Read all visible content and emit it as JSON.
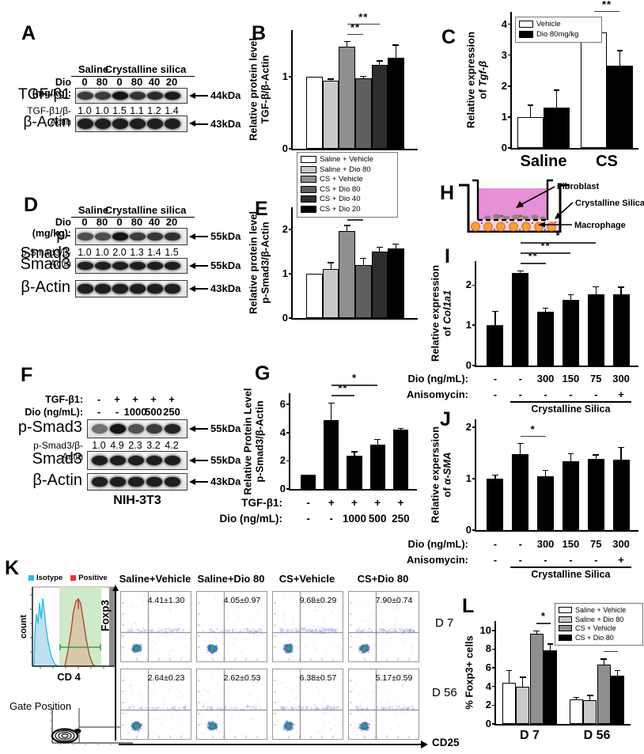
{
  "panel_letters": {
    "A": "A",
    "B": "B",
    "C": "C",
    "D": "D",
    "E": "E",
    "F": "F",
    "G": "G",
    "H": "H",
    "I": "I",
    "J": "J",
    "K": "K",
    "L": "L"
  },
  "blots": {
    "A": {
      "header_groups": [
        {
          "label": "Saline",
          "from": 0,
          "to": 1
        },
        {
          "label": "Crystalline silica",
          "from": 2,
          "to": 5
        }
      ],
      "treat_rows": [
        {
          "label": "Dio (mg/kg):",
          "values": [
            "0",
            "80",
            "0",
            "80",
            "40",
            "20"
          ]
        }
      ],
      "rows": [
        {
          "type": "band",
          "label": "TGF-β1",
          "kda": "44kDa"
        },
        {
          "type": "ratio",
          "label": "TGF-β1/β-Actin",
          "values": [
            "1.0",
            "1.0",
            "1.5",
            "1.1",
            "1.2",
            "1.4"
          ]
        },
        {
          "type": "band",
          "label": "β-Actin",
          "kda": "43kDa"
        }
      ]
    },
    "D": {
      "header_groups": [
        {
          "label": "Saline",
          "from": 0,
          "to": 1
        },
        {
          "label": "Crystalline silica",
          "from": 2,
          "to": 5
        }
      ],
      "treat_rows": [
        {
          "label": "Dio (mg/kg):",
          "values": [
            "0",
            "80",
            "0",
            "80",
            "40",
            "20"
          ]
        }
      ],
      "rows": [
        {
          "type": "band",
          "label": "p-Smad3",
          "kda": "55kDa"
        },
        {
          "type": "ratio",
          "label": "p-Smad3/β-Actin",
          "values": [
            "1.0",
            "1.0",
            "2.0",
            "1.3",
            "1.4",
            "1.5"
          ]
        },
        {
          "type": "band",
          "label": "Smad3",
          "kda": "55kDa"
        },
        {
          "type": "band",
          "label": "β-Actin",
          "kda": "43kDa"
        }
      ]
    },
    "F": {
      "treat_rows": [
        {
          "label": "TGF-β1:",
          "values": [
            "-",
            "+",
            "+",
            "+",
            "+"
          ]
        },
        {
          "label": "Dio (ng/mL):",
          "values": [
            "-",
            "-",
            "1000",
            "500",
            "250"
          ]
        }
      ],
      "rows": [
        {
          "type": "band",
          "label": "p-Smad3",
          "kda": "55kDa"
        },
        {
          "type": "ratio",
          "label": "p-Smad3/β-Actin",
          "values": [
            "1.0",
            "4.9",
            "2.3",
            "3.2",
            "4.2"
          ]
        },
        {
          "type": "band",
          "label": "Smad3",
          "kda": "55kDa"
        },
        {
          "type": "band",
          "label": "β-Actin",
          "kda": "43kDa"
        }
      ],
      "caption": "NIH-3T3"
    }
  },
  "chart_data": [
    {
      "id": "B",
      "type": "bar",
      "ylabel": {
        "l1": "Relative protein level",
        "l2": "TGF-β/β-Actin",
        "em": ""
      },
      "categories": [
        "Saline + Vehicle",
        "Saline + Dio 80",
        "CS + Vehicle",
        "CS + Dio 80",
        "CS + Dio 40",
        "CS + Dio 20"
      ],
      "values": [
        1.0,
        0.95,
        1.42,
        0.98,
        1.17,
        1.27
      ],
      "errors": [
        0,
        0.02,
        0.07,
        0.03,
        0.05,
        0.17
      ],
      "colors": [
        "#ffffff",
        "#c9c9c9",
        "#8f8f8f",
        "#5f5f5f",
        "#2e2e2e",
        "#000000"
      ],
      "ylim": [
        0,
        1.65
      ],
      "yticks": [
        0,
        1
      ],
      "sig": [
        {
          "from": 2,
          "to": 3,
          "label": "**",
          "row": 0
        },
        {
          "from": 2,
          "to": 4,
          "label": "**",
          "row": 1
        }
      ],
      "legend": [
        {
          "label": "Saline + Vehicle",
          "color": "#ffffff"
        },
        {
          "label": "Saline + Dio 80",
          "color": "#c9c9c9"
        },
        {
          "label": "CS + Vehicle",
          "color": "#8f8f8f"
        },
        {
          "label": "CS + Dio 80",
          "color": "#5f5f5f"
        },
        {
          "label": "CS + Dio 40",
          "color": "#2e2e2e"
        },
        {
          "label": "CS + Dio 20",
          "color": "#000000"
        }
      ]
    },
    {
      "id": "C",
      "type": "bar",
      "grouped": true,
      "ylabel": {
        "l1": "Relative expression",
        "l2": "of ",
        "em": "Tgf-β"
      },
      "groups": [
        "Saline",
        "CS"
      ],
      "series": [
        {
          "name": "Vehicle",
          "color": "#ffffff",
          "values": [
            1.0,
            3.73
          ],
          "errors": [
            0.38,
            0.45
          ]
        },
        {
          "name": "Dio 80mg/kg",
          "color": "#000000",
          "values": [
            1.3,
            2.65
          ],
          "errors": [
            0.57,
            0.5
          ]
        }
      ],
      "ylim": [
        0,
        4.4
      ],
      "yticks": [
        0,
        1,
        2,
        3,
        4
      ],
      "sig": [
        {
          "from": 2,
          "to": 3,
          "label": "**",
          "row": 0
        }
      ],
      "legend": [
        {
          "label": "Vehicle",
          "color": "#ffffff"
        },
        {
          "label": "Dio 80mg/kg",
          "color": "#000000"
        }
      ]
    },
    {
      "id": "E",
      "type": "bar",
      "ylabel": {
        "l1": "Relative protein level",
        "l2": "p-Smad3/β-Actin",
        "em": ""
      },
      "categories": [
        "Saline + Vehicle",
        "Saline + Dio 80",
        "CS + Vehicle",
        "CS + Dio 80",
        "CS + Dio 40",
        "CS + Dio 20"
      ],
      "values": [
        1.0,
        1.1,
        1.97,
        1.2,
        1.5,
        1.57
      ],
      "errors": [
        0,
        0.15,
        0.12,
        0.15,
        0.1,
        0.1
      ],
      "colors": [
        "#ffffff",
        "#c9c9c9",
        "#8f8f8f",
        "#5f5f5f",
        "#2e2e2e",
        "#000000"
      ],
      "ylim": [
        0,
        2.5
      ],
      "yticks": [
        0,
        1,
        2
      ],
      "sig": [
        {
          "from": 2,
          "to": 3,
          "label": "**",
          "row": 0
        },
        {
          "from": 2,
          "to": 4,
          "label": "**",
          "row": 1
        },
        {
          "from": 2,
          "to": 5,
          "label": "**",
          "row": 2
        }
      ]
    },
    {
      "id": "G",
      "type": "bar",
      "ylabel": {
        "l1": "Relative Protein Level",
        "l2": "p-Smad3/β-Actin",
        "em": ""
      },
      "values": [
        1.0,
        4.9,
        2.35,
        3.15,
        4.2
      ],
      "errors": [
        0,
        1.2,
        0.3,
        0.35,
        0.12
      ],
      "colors": [
        "#000000",
        "#000000",
        "#000000",
        "#000000",
        "#000000"
      ],
      "ylim": [
        0,
        6.8
      ],
      "yticks": [
        0,
        2,
        4,
        6
      ],
      "sig": [
        {
          "from": 1,
          "to": 2,
          "label": "**",
          "row": 0
        },
        {
          "from": 1,
          "to": 3,
          "label": "*",
          "row": 1
        }
      ],
      "xrows": [
        {
          "label": "TGF-β1:",
          "values": [
            "-",
            "+",
            "+",
            "+",
            "+"
          ]
        },
        {
          "label": "Dio (ng/mL):",
          "values": [
            "-",
            "-",
            "1000",
            "500",
            "250"
          ]
        }
      ]
    },
    {
      "id": "I",
      "type": "bar",
      "ylabel": {
        "l1": "Relative expression",
        "l2": "of ",
        "em": "Col1a1"
      },
      "values": [
        1.0,
        2.3,
        1.33,
        1.63,
        1.78,
        1.77
      ],
      "errors": [
        0.35,
        0.06,
        0.1,
        0.13,
        0.18,
        0.18
      ],
      "colors": [
        "#000000",
        "#000000",
        "#000000",
        "#000000",
        "#000000",
        "#000000"
      ],
      "ylim": [
        0,
        2.6
      ],
      "yticks": [
        0,
        1,
        2
      ],
      "sig": [
        {
          "from": 1,
          "to": 2,
          "label": "**",
          "row": 0
        },
        {
          "from": 1,
          "to": 3,
          "label": "**",
          "row": 1
        },
        {
          "from": 1,
          "to": 4,
          "label": "*",
          "row": 2
        }
      ],
      "xrows": [
        {
          "label": "Dio (ng/mL):",
          "values": [
            "-",
            "-",
            "300",
            "150",
            "75",
            "300"
          ]
        },
        {
          "label": "Anisomycin:",
          "values": [
            "-",
            "-",
            "-",
            "-",
            "-",
            "+"
          ]
        }
      ],
      "bracket": {
        "from": 1,
        "to": 5,
        "label": "Crystalline Silica"
      }
    },
    {
      "id": "J",
      "type": "bar",
      "ylabel": {
        "l1": "Relative experssion",
        "l2": "of ",
        "em": "α-SMA"
      },
      "values": [
        1.0,
        1.48,
        1.04,
        1.33,
        1.38,
        1.36
      ],
      "errors": [
        0.07,
        0.2,
        0.12,
        0.15,
        0.08,
        0.25
      ],
      "colors": [
        "#000000",
        "#000000",
        "#000000",
        "#000000",
        "#000000",
        "#000000"
      ],
      "ylim": [
        0,
        2.15
      ],
      "yticks": [
        0,
        1,
        2
      ],
      "sig": [
        {
          "from": 1,
          "to": 2,
          "label": "*",
          "row": 0
        }
      ],
      "xrows": [
        {
          "label": "Dio (ng/mL):",
          "values": [
            "-",
            "-",
            "300",
            "150",
            "75",
            "300"
          ]
        },
        {
          "label": "Anisomycin:",
          "values": [
            "-",
            "-",
            "-",
            "-",
            "-",
            "+"
          ]
        }
      ],
      "bracket": {
        "from": 1,
        "to": 5,
        "label": "Crystalline Silica"
      }
    },
    {
      "id": "L",
      "type": "bar",
      "grouped": true,
      "ylabel": {
        "l1": "% Foxp3+ cells",
        "l2": "",
        "em": ""
      },
      "groups": [
        "D 7",
        "D 56"
      ],
      "series": [
        {
          "name": "Saline + Vehicle",
          "color": "#ffffff",
          "values": [
            4.4,
            2.6
          ],
          "errors": [
            1.3,
            0.25
          ]
        },
        {
          "name": "Saline + Dio 80",
          "color": "#c9c9c9",
          "values": [
            4.0,
            2.55
          ],
          "errors": [
            1.0,
            0.5
          ]
        },
        {
          "name": "CS + Vehicle",
          "color": "#8f8f8f",
          "values": [
            9.65,
            6.35
          ],
          "errors": [
            0.3,
            0.6
          ]
        },
        {
          "name": "CS + Dio 80",
          "color": "#000000",
          "values": [
            7.9,
            5.15
          ],
          "errors": [
            0.65,
            0.55
          ]
        }
      ],
      "ylim": [
        0,
        11
      ],
      "yticks": [
        0,
        2,
        4,
        6,
        8,
        10
      ],
      "sig": [
        {
          "from": 2,
          "to": 3,
          "label": "*",
          "row": 0
        },
        {
          "from": 6,
          "to": 7,
          "label": "**",
          "row": 0
        }
      ],
      "legend": [
        {
          "label": "Saline + Vehicle",
          "color": "#ffffff"
        },
        {
          "label": "Saline + Dio 80",
          "color": "#c9c9c9"
        },
        {
          "label": "CS + Vehicle",
          "color": "#8f8f8f"
        },
        {
          "label": "CS + Dio 80",
          "color": "#000000"
        }
      ]
    }
  ],
  "diagram_h": {
    "labels": [
      "Fibroblast",
      "Crystalline Silica",
      "Macrophage"
    ]
  },
  "flow": {
    "legend": [
      {
        "label": "Isotype",
        "color": "#2bbde8"
      },
      {
        "label": "Positive",
        "color": "#e8362e"
      }
    ],
    "hist": {
      "ylabel": "count",
      "xlabel": "CD 4"
    },
    "gate_label": "Gate Position",
    "grid": {
      "ylabel": "Foxp3",
      "xlabel": "CD25",
      "col_headers": [
        "Saline+Vehicle",
        "Saline+Dio 80",
        "CS+Vehicle",
        "CS+Dio 80"
      ],
      "row_labels": [
        "D 7",
        "D 56"
      ],
      "values": [
        [
          "4.41±1.30",
          "4.05±0.97",
          "9.68±0.29",
          "7.90±0.74"
        ],
        [
          "2.64±0.23",
          "2.62±0.53",
          "6.38±0.57",
          "5.17±0.59"
        ]
      ],
      "percents": [
        [
          4.41,
          4.05,
          9.68,
          7.9
        ],
        [
          2.64,
          2.62,
          6.38,
          5.17
        ]
      ]
    }
  }
}
